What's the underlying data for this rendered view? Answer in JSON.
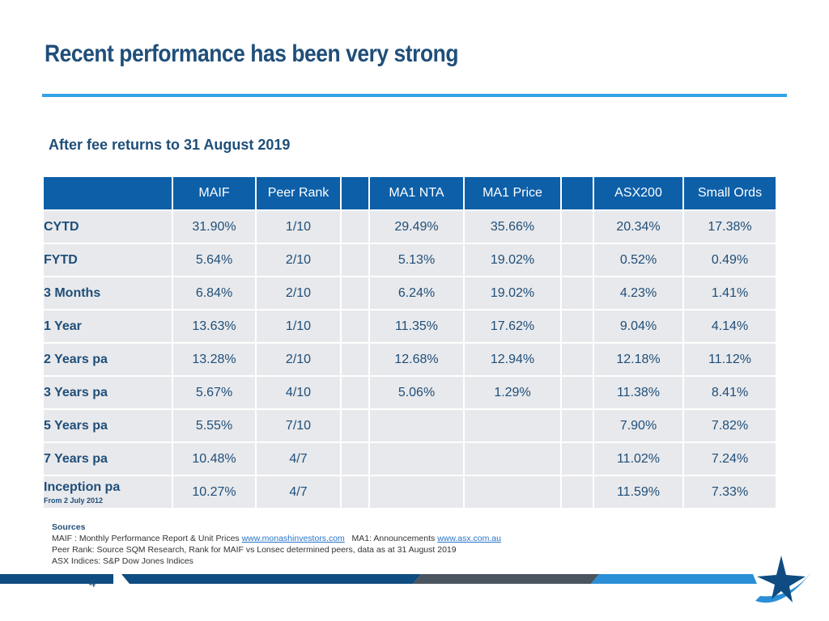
{
  "title": "Recent performance has been very strong",
  "subtitle": "After fee returns to 31 August 2019",
  "table": {
    "headers": [
      "",
      "MAIF",
      "Peer Rank",
      "",
      "MA1 NTA",
      "MA1 Price",
      "",
      "ASX200",
      "Small Ords"
    ],
    "rows": [
      {
        "label": "CYTD",
        "note": "",
        "cells": [
          "31.90%",
          "1/10",
          "",
          "29.49%",
          "35.66%",
          "",
          "20.34%",
          "17.38%"
        ]
      },
      {
        "label": "FYTD",
        "note": "",
        "cells": [
          "5.64%",
          "2/10",
          "",
          "5.13%",
          "19.02%",
          "",
          "0.52%",
          "0.49%"
        ]
      },
      {
        "label": "3 Months",
        "note": "",
        "cells": [
          "6.84%",
          "2/10",
          "",
          "6.24%",
          "19.02%",
          "",
          "4.23%",
          "1.41%"
        ]
      },
      {
        "label": "1 Year",
        "note": "",
        "cells": [
          "13.63%",
          "1/10",
          "",
          "11.35%",
          "17.62%",
          "",
          "9.04%",
          "4.14%"
        ]
      },
      {
        "label": "2 Years pa",
        "note": "",
        "cells": [
          "13.28%",
          "2/10",
          "",
          "12.68%",
          "12.94%",
          "",
          "12.18%",
          "11.12%"
        ]
      },
      {
        "label": "3 Years pa",
        "note": "",
        "cells": [
          "5.67%",
          "4/10",
          "",
          "5.06%",
          "1.29%",
          "",
          "11.38%",
          "8.41%"
        ]
      },
      {
        "label": "5 Years pa",
        "note": "",
        "cells": [
          "5.55%",
          "7/10",
          "",
          "",
          "",
          "",
          "7.90%",
          "7.82%"
        ]
      },
      {
        "label": "7 Years pa",
        "note": "",
        "cells": [
          "10.48%",
          "4/7",
          "",
          "",
          "",
          "",
          "11.02%",
          "7.24%"
        ]
      },
      {
        "label": "Inception pa",
        "note": "From 2 July 2012",
        "cells": [
          "10.27%",
          "4/7",
          "",
          "",
          "",
          "",
          "11.59%",
          "7.33%"
        ]
      }
    ]
  },
  "sources": {
    "heading": "Sources",
    "line1_a": "MAIF : Monthly Performance Report & Unit Prices ",
    "link1": "www.monashinvestors.com",
    "line1_b": "   MA1: Announcements ",
    "link2": "www.asx.com.au",
    "line2": "Peer Rank: Source SQM Research, Rank for MAIF vs Lonsec determined peers, data as at 31 August 2019",
    "line3": "ASX Indices: S&P Dow Jones Indices"
  },
  "page_number": "4",
  "colors": {
    "title": "#1f4e79",
    "header_bg": "#0d5fa8",
    "row_bg": "#e8e9ec",
    "rule": "#2fa3e6",
    "footer_dark": "#0f4c81",
    "footer_grey": "#4a5560",
    "footer_light": "#2a8fd6"
  }
}
